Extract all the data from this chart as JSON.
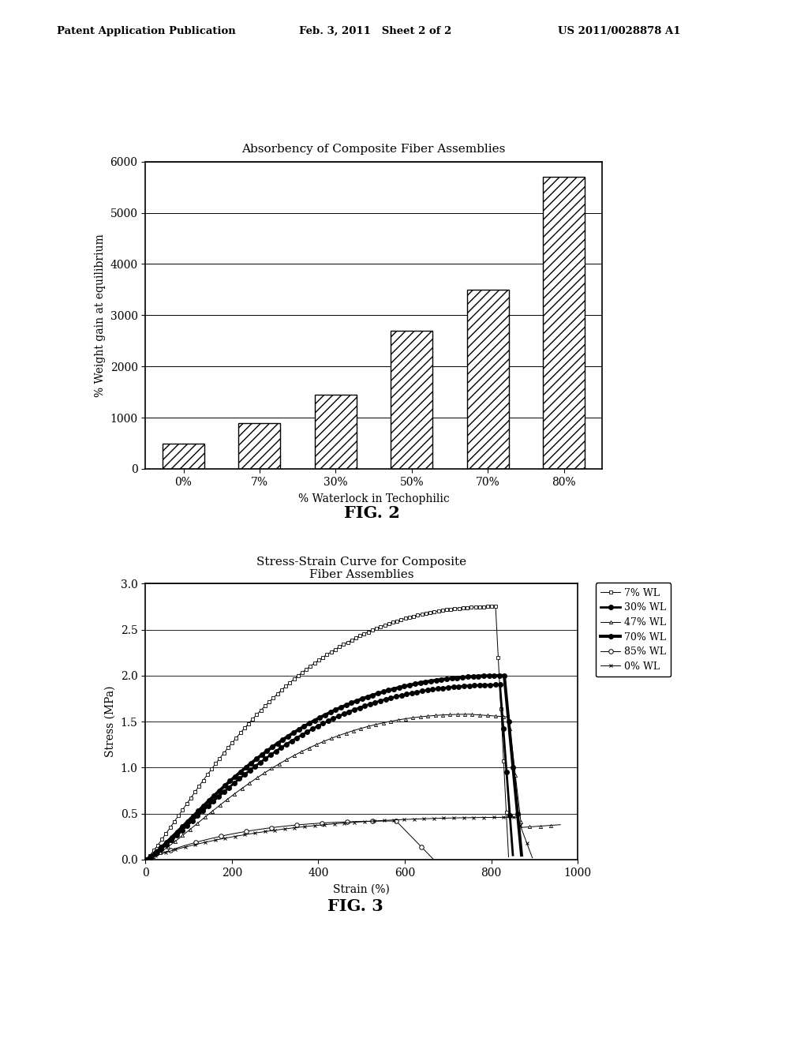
{
  "header_left": "Patent Application Publication",
  "header_mid": "Feb. 3, 2011   Sheet 2 of 2",
  "header_right": "US 2011/0028878 A1",
  "fig2_title": "Absorbency of Composite Fiber Assemblies",
  "fig2_xlabel": "% Waterlock in Techophilic",
  "fig2_ylabel": "% Weight gain at equilibrium",
  "fig2_categories": [
    "0%",
    "7%",
    "30%",
    "50%",
    "70%",
    "80%"
  ],
  "fig2_values": [
    500,
    900,
    1450,
    2700,
    3500,
    5700
  ],
  "fig2_ylim": [
    0,
    6000
  ],
  "fig2_yticks": [
    0,
    1000,
    2000,
    3000,
    4000,
    5000,
    6000
  ],
  "fig2_label": "FIG. 2",
  "fig3_title_line1": "Stress-Strain Curve for Composite",
  "fig3_title_line2": "Fiber Assemblies",
  "fig3_xlabel": "Strain (%)",
  "fig3_ylabel": "Stress (MPa)",
  "fig3_xlim": [
    0,
    1000
  ],
  "fig3_ylim": [
    0,
    3
  ],
  "fig3_xticks": [
    0,
    200,
    400,
    600,
    800,
    1000
  ],
  "fig3_yticks": [
    0,
    0.5,
    1.0,
    1.5,
    2.0,
    2.5,
    3.0
  ],
  "fig3_label": "FIG. 3",
  "fig3_legend": [
    "7% WL",
    "30% WL",
    "47% WL",
    "70% WL",
    "85% WL",
    "0% WL"
  ],
  "bg_color": "#ffffff",
  "bar_hatch": "///",
  "bar_edgecolor": "#000000",
  "bar_facecolor": "#ffffff"
}
